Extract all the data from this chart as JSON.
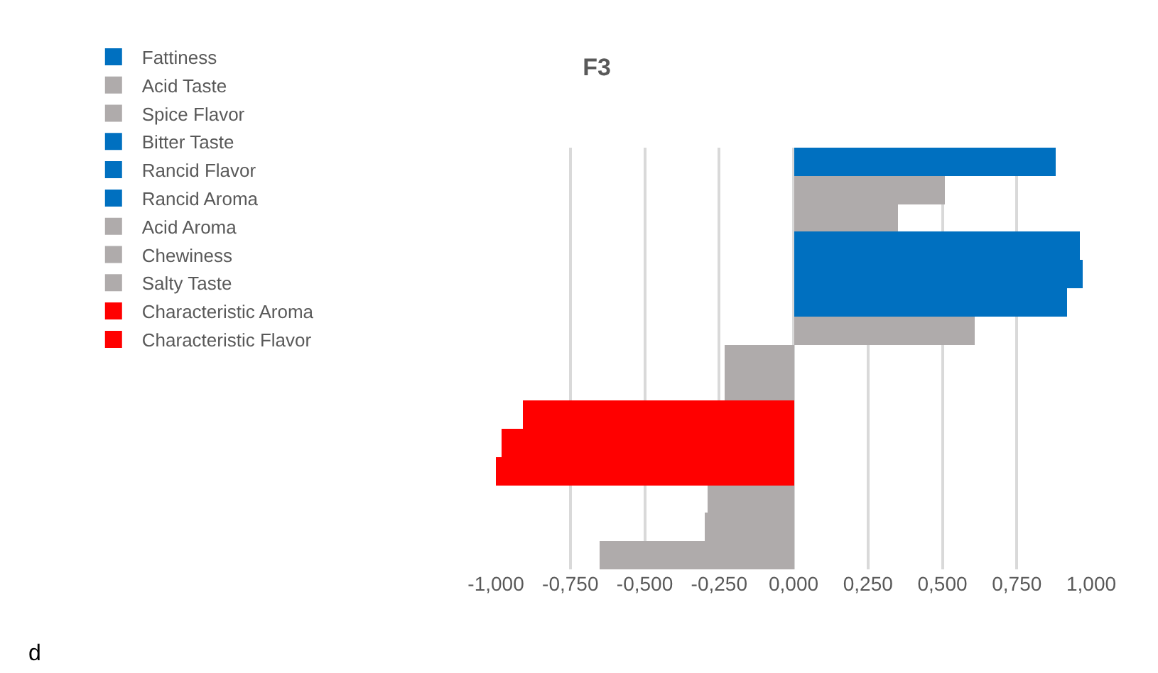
{
  "chart_data": {
    "type": "bar",
    "orientation": "horizontal",
    "title": "F3",
    "categories": [
      null,
      null,
      null,
      null,
      null,
      null,
      null,
      null,
      null,
      null,
      null,
      null,
      null,
      null,
      null
    ],
    "series": [
      {
        "name": "Fattiness",
        "color": "#0070c0",
        "values": [
          0.88,
          null,
          null,
          null,
          null,
          null,
          null,
          null,
          null,
          null,
          null,
          null,
          null,
          null,
          null
        ]
      },
      {
        "name": "Acid Taste",
        "color": "#afabab",
        "values": [
          null,
          0.51,
          null,
          null,
          null,
          null,
          null,
          null,
          null,
          null,
          null,
          null,
          null,
          null,
          null
        ]
      },
      {
        "name": "Spice Flavor",
        "color": "#afabab",
        "values": [
          null,
          null,
          0.35,
          null,
          null,
          null,
          null,
          null,
          null,
          null,
          null,
          null,
          null,
          null,
          null
        ]
      },
      {
        "name": "Bitter Taste",
        "color": "#0070c0",
        "values": [
          null,
          null,
          null,
          0.96,
          null,
          null,
          null,
          null,
          null,
          null,
          null,
          null,
          null,
          null,
          null
        ]
      },
      {
        "name": "Rancid Flavor",
        "color": "#0070c0",
        "values": [
          null,
          null,
          null,
          null,
          0.97,
          null,
          null,
          null,
          null,
          null,
          null,
          null,
          null,
          null,
          null
        ]
      },
      {
        "name": "Rancid Aroma",
        "color": "#0070c0",
        "values": [
          null,
          null,
          null,
          null,
          null,
          0.92,
          null,
          null,
          null,
          null,
          null,
          null,
          null,
          null,
          null
        ]
      },
      {
        "name": "Acid Aroma",
        "color": "#afabab",
        "values": [
          null,
          null,
          null,
          null,
          null,
          null,
          0.61,
          null,
          null,
          null,
          null,
          null,
          null,
          null,
          null
        ]
      },
      {
        "name": "Chewiness",
        "color": "#afabab",
        "values": [
          null,
          null,
          null,
          null,
          null,
          null,
          null,
          -0.23,
          null,
          null,
          null,
          null,
          null,
          null,
          null
        ]
      },
      {
        "name": "Salty Taste",
        "color": "#afabab",
        "values": [
          null,
          null,
          null,
          null,
          null,
          null,
          null,
          null,
          -0.23,
          null,
          null,
          null,
          null,
          null,
          null
        ]
      },
      {
        "name": "Characteristic Aroma",
        "color": "#ff0000",
        "values": [
          null,
          null,
          null,
          null,
          null,
          null,
          null,
          null,
          null,
          -0.91,
          null,
          null,
          null,
          null,
          null
        ]
      },
      {
        "name": "Characteristic Flavor",
        "color": "#ff0000",
        "values": [
          null,
          null,
          null,
          null,
          null,
          null,
          null,
          null,
          null,
          null,
          -0.98,
          null,
          null,
          null,
          null
        ]
      },
      {
        "color": "#ff0000",
        "values": [
          null,
          null,
          null,
          null,
          null,
          null,
          null,
          null,
          null,
          null,
          null,
          -1.0,
          null,
          null,
          null
        ]
      },
      {
        "color": "#afabab",
        "values": [
          null,
          null,
          null,
          null,
          null,
          null,
          null,
          null,
          null,
          null,
          null,
          null,
          -0.29,
          null,
          null
        ]
      },
      {
        "color": "#afabab",
        "values": [
          null,
          null,
          null,
          null,
          null,
          null,
          null,
          null,
          null,
          null,
          null,
          null,
          null,
          -0.3,
          null
        ]
      },
      {
        "color": "#afabab",
        "values": [
          null,
          null,
          null,
          null,
          null,
          null,
          null,
          null,
          null,
          null,
          null,
          null,
          null,
          null,
          -0.65
        ]
      }
    ],
    "xlim": [
      -1,
      1
    ],
    "xticks": [
      {
        "value": -1,
        "label": "-1,000"
      },
      {
        "value": -0.75,
        "label": "-0,750"
      },
      {
        "value": -0.5,
        "label": "-0,500"
      },
      {
        "value": -0.25,
        "label": "-0,250"
      },
      {
        "value": 0,
        "label": "0,000"
      },
      {
        "value": 0.25,
        "label": "0,250"
      },
      {
        "value": 0.5,
        "label": "0,500"
      },
      {
        "value": 0.75,
        "label": "0,750"
      },
      {
        "value": 1,
        "label": "1,000"
      }
    ],
    "grid": "x",
    "legend": "left",
    "tick_labels": "x",
    "annotations": [
      "d"
    ]
  }
}
